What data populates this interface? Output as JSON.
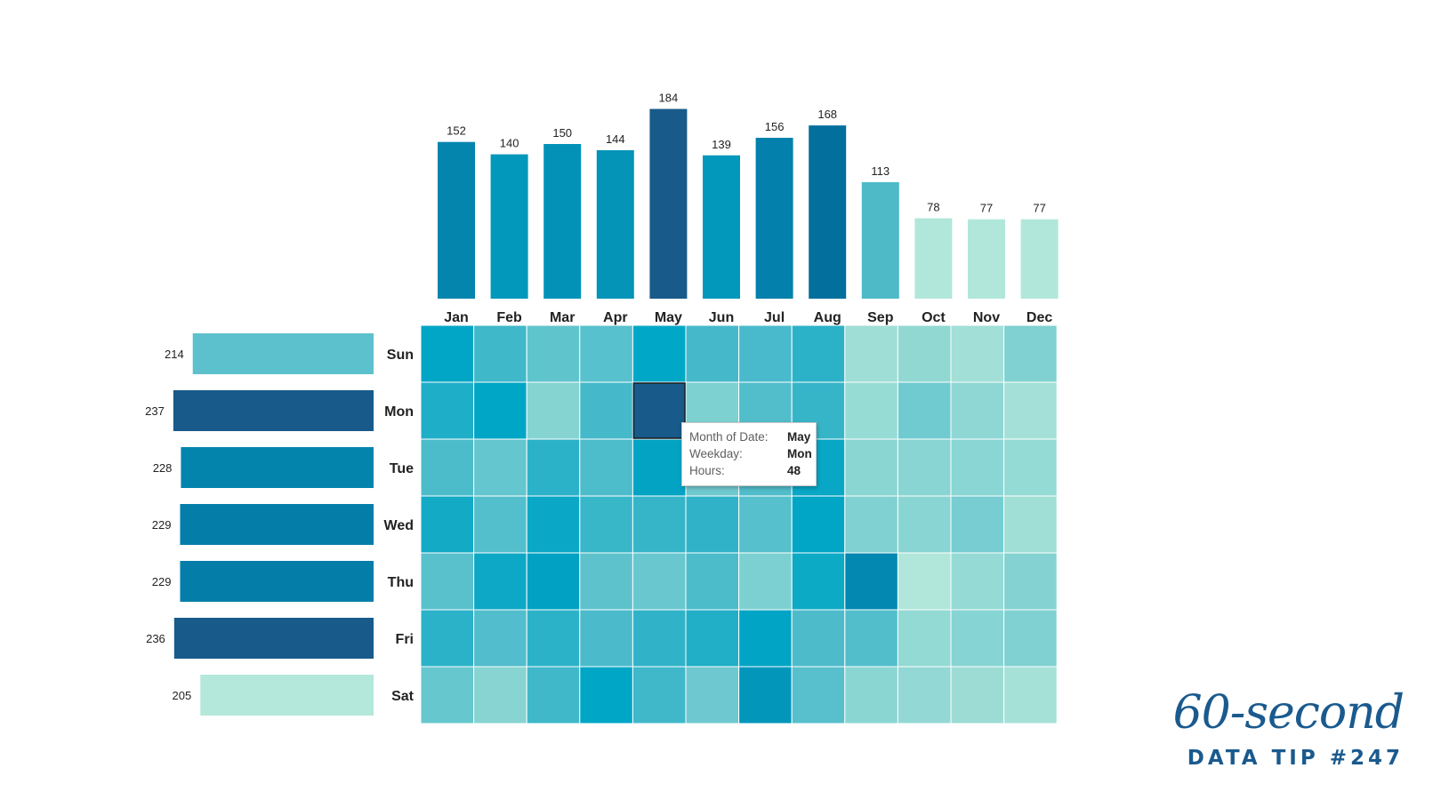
{
  "chart_data": [
    {
      "type": "bar",
      "orientation": "vertical",
      "categories": [
        "Jan",
        "Feb",
        "Mar",
        "Apr",
        "May",
        "Jun",
        "Jul",
        "Aug",
        "Sep",
        "Oct",
        "Nov",
        "Dec"
      ],
      "values": [
        152,
        140,
        150,
        144,
        184,
        139,
        156,
        168,
        113,
        78,
        77,
        77
      ],
      "colors": [
        "#0485ad",
        "#0198bc",
        "#0392b7",
        "#0394b8",
        "#185a8a",
        "#0298bc",
        "#0380ab",
        "#036f9c",
        "#4ebac8",
        "#b1e7da",
        "#b1e7da",
        "#b1e7da"
      ]
    },
    {
      "type": "bar",
      "orientation": "horizontal",
      "categories": [
        "Sun",
        "Mon",
        "Tue",
        "Wed",
        "Thu",
        "Fri",
        "Sat"
      ],
      "values": [
        214,
        237,
        228,
        229,
        229,
        236,
        205
      ],
      "colors": [
        "#5cc1cc",
        "#185a8a",
        "#0384ad",
        "#047ea9",
        "#047ea9",
        "#185a8a",
        "#b3e8da"
      ]
    },
    {
      "type": "heatmap",
      "x_categories": [
        "Jan",
        "Feb",
        "Mar",
        "Apr",
        "May",
        "Jun",
        "Jul",
        "Aug",
        "Sep",
        "Oct",
        "Nov",
        "Dec"
      ],
      "y_categories": [
        "Sun",
        "Mon",
        "Tue",
        "Wed",
        "Thu",
        "Fri",
        "Sat"
      ],
      "cell_colors": [
        [
          "#01a5c5",
          "#3fb8ca",
          "#60c4cd",
          "#57c1cd",
          "#01a7c6",
          "#45b9ca",
          "#49bacb",
          "#2cb2c8",
          "#9fded6",
          "#91d8d3",
          "#a1dfd7",
          "#80d1d1"
        ],
        [
          "#1eaec8",
          "#00a6c5",
          "#85d4d2",
          "#45b9ca",
          "#185a8a",
          "#7dd1d1",
          "#52bdcb",
          "#36b5c9",
          "#97dbd5",
          "#6fcbd0",
          "#8fd7d4",
          "#a4e0d7"
        ],
        [
          "#4cbccb",
          "#64c6ce",
          "#2cb2c8",
          "#4dbccb",
          "#02a3c3",
          "#6fcad0",
          "#51bdcb",
          "#08a7c6",
          "#8ad6d3",
          "#88d5d3",
          "#8ad6d4",
          "#94dad5"
        ],
        [
          "#13aac6",
          "#54bfcc",
          "#0aa8c6",
          "#38b7c9",
          "#36b5c9",
          "#30b3c8",
          "#56c0cc",
          "#01a5c5",
          "#80d1d1",
          "#89d5d3",
          "#77cdd1",
          "#a0dfd6"
        ],
        [
          "#59c1cc",
          "#0da8c6",
          "#00a1c3",
          "#5ec2cd",
          "#68c7cf",
          "#4cbccb",
          "#7dd0d1",
          "#0daac6",
          "#0388b1",
          "#b1e7da",
          "#96dad5",
          "#84d3d2"
        ],
        [
          "#2bb2c8",
          "#52bdcc",
          "#2cb2c8",
          "#4bbbcb",
          "#30b3c8",
          "#21aec7",
          "#02a4c5",
          "#4ebbcb",
          "#53becb",
          "#93d9d4",
          "#86d4d3",
          "#80d1d1"
        ],
        [
          "#66c7ce",
          "#87d4d2",
          "#40b8ca",
          "#00a6c6",
          "#41b8ca",
          "#6dc9cf",
          "#0396bb",
          "#57c0cc",
          "#8ad6d3",
          "#93d8d4",
          "#9ddcd5",
          "#a6e1d8"
        ]
      ],
      "highlighted_cell": {
        "x": "May",
        "y": "Mon"
      }
    }
  ],
  "tooltip": {
    "month_label": "Month of Date:",
    "month_value": "May",
    "weekday_label": "Weekday:",
    "weekday_value": "Mon",
    "hours_label": "Hours:",
    "hours_value": "48"
  },
  "branding": {
    "script_text": "60-second",
    "tip_text": "DATA TIP #247",
    "color": "#1a5a8e"
  }
}
